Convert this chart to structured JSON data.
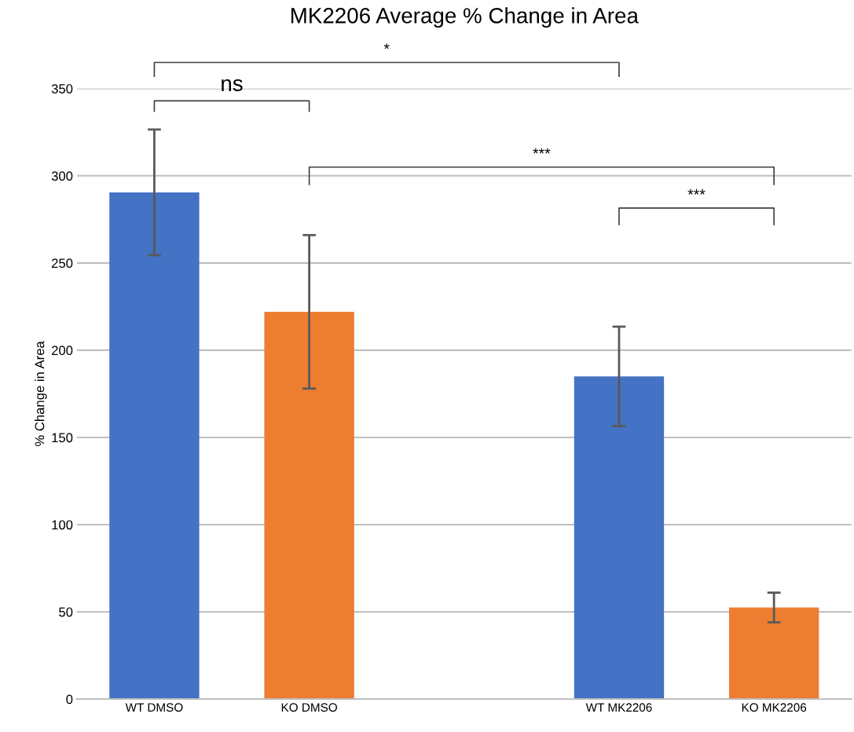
{
  "chart_data": {
    "type": "bar",
    "title": "MK2206 Average % Change in Area",
    "ylabel": "% Change in Area",
    "categories": [
      "WT DMSO",
      "KO DMSO",
      null,
      "WT MK2206",
      "KO MK2206"
    ],
    "values": [
      290.5,
      222,
      null,
      185,
      52.5
    ],
    "colors": [
      "#4472c4",
      "#ed7d31",
      null,
      "#4472c4",
      "#ed7d31"
    ],
    "errors": [
      36,
      44,
      null,
      28.5,
      8.5
    ],
    "ylim": [
      0,
      350
    ],
    "yticks": [
      0,
      50,
      100,
      150,
      200,
      250,
      300,
      350
    ],
    "grid": "y",
    "annotations": [
      "*",
      "ns",
      "***",
      "***"
    ]
  }
}
